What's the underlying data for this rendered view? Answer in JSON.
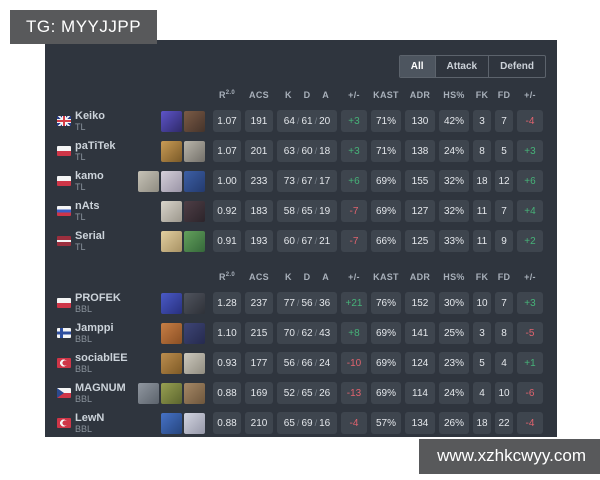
{
  "badge": {
    "text": "TG: MYYJJPP"
  },
  "watermark": {
    "text": "www.xzhkcwyy.com"
  },
  "filters": {
    "options": [
      "All",
      "Attack",
      "Defend"
    ],
    "active": "All"
  },
  "kda_separator": "/",
  "colors": {
    "panel_bg": "#2f353e",
    "cell_bg": "#3e454e",
    "badge_bg": "#58595b",
    "positive": "#46b278",
    "negative": "#e0636e"
  },
  "header": {
    "rating": {
      "label": "R",
      "sup": "2.0"
    },
    "acs": "ACS",
    "k": "K",
    "d": "D",
    "a": "A",
    "diff": "+/-",
    "kast": "KAST",
    "adr": "ADR",
    "hs": "HS%",
    "fk": "FK",
    "fd": "FD",
    "fk_diff": "+/-"
  },
  "teams": [
    {
      "name": "TL",
      "players": [
        {
          "name": "Keiko",
          "team": "TL",
          "flag": "uk",
          "agents": [
            [
              "#5d54c8",
              "#2f2a6a"
            ],
            [
              "#7b5b46",
              "#45332a"
            ]
          ],
          "stats": {
            "rating": "1.07",
            "acs": "191",
            "k": "64",
            "d": "61",
            "a": "20",
            "diff": "+3",
            "kast": "71%",
            "adr": "130",
            "hs": "42%",
            "fk": "3",
            "fd": "7",
            "fk_diff": "-4"
          }
        },
        {
          "name": "paTiTek",
          "team": "TL",
          "flag": "poland",
          "agents": [
            [
              "#c99b55",
              "#7a5a28"
            ],
            [
              "#b9b5aa",
              "#73706a"
            ]
          ],
          "stats": {
            "rating": "1.07",
            "acs": "201",
            "k": "63",
            "d": "60",
            "a": "18",
            "diff": "+3",
            "kast": "71%",
            "adr": "138",
            "hs": "24%",
            "fk": "8",
            "fd": "5",
            "fk_diff": "+3"
          }
        },
        {
          "name": "kamo",
          "team": "TL",
          "flag": "poland",
          "agents": [
            [
              "#c6c2b6",
              "#8f8c82"
            ],
            [
              "#d4cfd9",
              "#9a94a6"
            ],
            [
              "#3d5fa5",
              "#233a6e"
            ]
          ],
          "stats": {
            "rating": "1.00",
            "acs": "233",
            "k": "73",
            "d": "67",
            "a": "17",
            "diff": "+6",
            "kast": "69%",
            "adr": "155",
            "hs": "32%",
            "fk": "18",
            "fd": "12",
            "fk_diff": "+6"
          }
        },
        {
          "name": "nAts",
          "team": "TL",
          "flag": "russia",
          "agents": [
            [
              "#d8d4cb",
              "#9c978c"
            ],
            [
              "#4e3e46",
              "#2c242a"
            ]
          ],
          "stats": {
            "rating": "0.92",
            "acs": "183",
            "k": "58",
            "d": "65",
            "a": "19",
            "diff": "-7",
            "kast": "69%",
            "adr": "127",
            "hs": "32%",
            "fk": "11",
            "fd": "7",
            "fk_diff": "+4"
          }
        },
        {
          "name": "Serial",
          "team": "TL",
          "flag": "latvia",
          "agents": [
            [
              "#e2cfa0",
              "#a89264"
            ],
            [
              "#63a05c",
              "#35683a"
            ]
          ],
          "stats": {
            "rating": "0.91",
            "acs": "193",
            "k": "60",
            "d": "67",
            "a": "21",
            "diff": "-7",
            "kast": "66%",
            "adr": "125",
            "hs": "33%",
            "fk": "11",
            "fd": "9",
            "fk_diff": "+2"
          }
        }
      ]
    },
    {
      "name": "BBL",
      "players": [
        {
          "name": "PROFEK",
          "team": "BBL",
          "flag": "poland",
          "agents": [
            [
              "#4a5ac6",
              "#28307e"
            ],
            [
              "#50545e",
              "#2e3138"
            ]
          ],
          "stats": {
            "rating": "1.28",
            "acs": "237",
            "k": "77",
            "d": "56",
            "a": "36",
            "diff": "+21",
            "kast": "76%",
            "adr": "152",
            "hs": "30%",
            "fk": "10",
            "fd": "7",
            "fk_diff": "+3"
          }
        },
        {
          "name": "Jamppi",
          "team": "BBL",
          "flag": "finland",
          "agents": [
            [
              "#c77e45",
              "#8a4f24"
            ],
            [
              "#3e4576",
              "#252a4e"
            ]
          ],
          "stats": {
            "rating": "1.10",
            "acs": "215",
            "k": "70",
            "d": "62",
            "a": "43",
            "diff": "+8",
            "kast": "69%",
            "adr": "141",
            "hs": "25%",
            "fk": "3",
            "fd": "8",
            "fk_diff": "-5"
          }
        },
        {
          "name": "sociablEE",
          "team": "BBL",
          "flag": "turkey",
          "agents": [
            [
              "#bb8d4e",
              "#7e5a26"
            ],
            [
              "#ccc8bd",
              "#908c80"
            ]
          ],
          "stats": {
            "rating": "0.93",
            "acs": "177",
            "k": "56",
            "d": "66",
            "a": "24",
            "diff": "-10",
            "kast": "69%",
            "adr": "124",
            "hs": "23%",
            "fk": "5",
            "fd": "4",
            "fk_diff": "+1"
          }
        },
        {
          "name": "MAGNUM",
          "team": "BBL",
          "flag": "czech",
          "agents": [
            [
              "#9097a0",
              "#5c636c"
            ],
            [
              "#97a052",
              "#5c652e"
            ],
            [
              "#a58866",
              "#6e563c"
            ]
          ],
          "stats": {
            "rating": "0.88",
            "acs": "169",
            "k": "52",
            "d": "65",
            "a": "26",
            "diff": "-13",
            "kast": "69%",
            "adr": "114",
            "hs": "24%",
            "fk": "4",
            "fd": "10",
            "fk_diff": "-6"
          }
        },
        {
          "name": "LewN",
          "team": "BBL",
          "flag": "turkey",
          "agents": [
            [
              "#4672c6",
              "#26457e"
            ],
            [
              "#d2d4e0",
              "#9597a8"
            ]
          ],
          "stats": {
            "rating": "0.88",
            "acs": "210",
            "k": "65",
            "d": "69",
            "a": "16",
            "diff": "-4",
            "kast": "57%",
            "adr": "134",
            "hs": "26%",
            "fk": "18",
            "fd": "22",
            "fk_diff": "-4"
          }
        }
      ]
    }
  ]
}
